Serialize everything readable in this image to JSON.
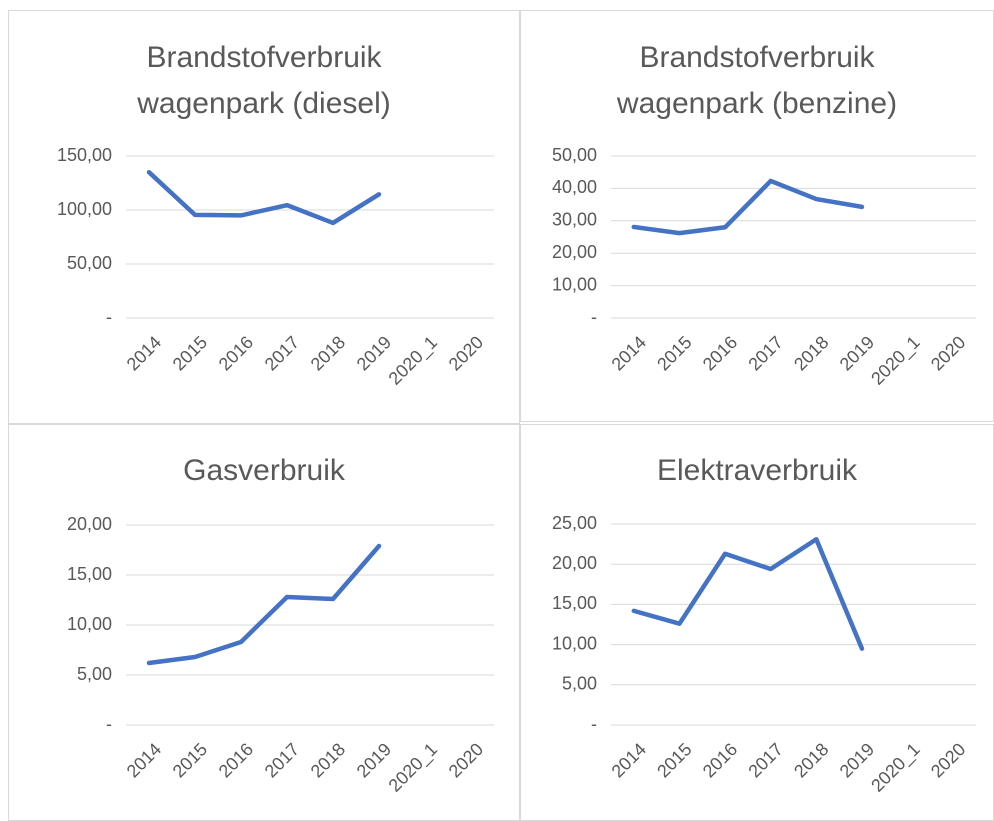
{
  "chart_data": [
    {
      "type": "line",
      "title": "Brandstofverbruik wagenpark (diesel)",
      "categories": [
        "2014",
        "2015",
        "2016",
        "2017",
        "2018",
        "2019",
        "2020_1",
        "2020"
      ],
      "series": [
        {
          "color": "#4472c4",
          "values": [
            135,
            95.5,
            95,
            104.5,
            88,
            114.5,
            null,
            null
          ]
        }
      ],
      "ylim": [
        0,
        150
      ],
      "yticks": [
        {
          "value": 0,
          "label": "-"
        },
        {
          "value": 50,
          "label": "50,00"
        },
        {
          "value": 100,
          "label": "100,00"
        },
        {
          "value": 150,
          "label": "150,00"
        }
      ],
      "grid": true
    },
    {
      "type": "line",
      "title": "Brandstofverbruik wagenpark (benzine)",
      "categories": [
        "2014",
        "2015",
        "2016",
        "2017",
        "2018",
        "2019",
        "2020_1",
        "2020"
      ],
      "series": [
        {
          "color": "#4472c4",
          "values": [
            28.1,
            26.2,
            28,
            42.3,
            36.7,
            34.3,
            null,
            null
          ]
        }
      ],
      "ylim": [
        0,
        50
      ],
      "yticks": [
        {
          "value": 0,
          "label": "-"
        },
        {
          "value": 10,
          "label": "10,00"
        },
        {
          "value": 20,
          "label": "20,00"
        },
        {
          "value": 30,
          "label": "30,00"
        },
        {
          "value": 40,
          "label": "40,00"
        },
        {
          "value": 50,
          "label": "50,00"
        }
      ],
      "grid": true
    },
    {
      "type": "line",
      "title": "Gasverbruik",
      "categories": [
        "2014",
        "2015",
        "2016",
        "2017",
        "2018",
        "2019",
        "2020_1",
        "2020"
      ],
      "series": [
        {
          "color": "#4472c4",
          "values": [
            6.2,
            6.8,
            8.3,
            12.8,
            12.6,
            17.9,
            null,
            null
          ]
        }
      ],
      "ylim": [
        0,
        20
      ],
      "yticks": [
        {
          "value": 0,
          "label": "-"
        },
        {
          "value": 5,
          "label": "5,00"
        },
        {
          "value": 10,
          "label": "10,00"
        },
        {
          "value": 15,
          "label": "15,00"
        },
        {
          "value": 20,
          "label": "20,00"
        }
      ],
      "grid": true
    },
    {
      "type": "line",
      "title": "Elektraverbruik",
      "categories": [
        "2014",
        "2015",
        "2016",
        "2017",
        "2018",
        "2019",
        "2020_1",
        "2020"
      ],
      "series": [
        {
          "color": "#4472c4",
          "values": [
            14.2,
            12.6,
            21.3,
            19.4,
            23.1,
            9.5,
            null,
            null
          ]
        }
      ],
      "ylim": [
        0,
        25
      ],
      "yticks": [
        {
          "value": 0,
          "label": "-"
        },
        {
          "value": 5,
          "label": "5,00"
        },
        {
          "value": 10,
          "label": "10,00"
        },
        {
          "value": 15,
          "label": "15,00"
        },
        {
          "value": 20,
          "label": "20,00"
        },
        {
          "value": 25,
          "label": "25,00"
        }
      ],
      "grid": true
    }
  ]
}
